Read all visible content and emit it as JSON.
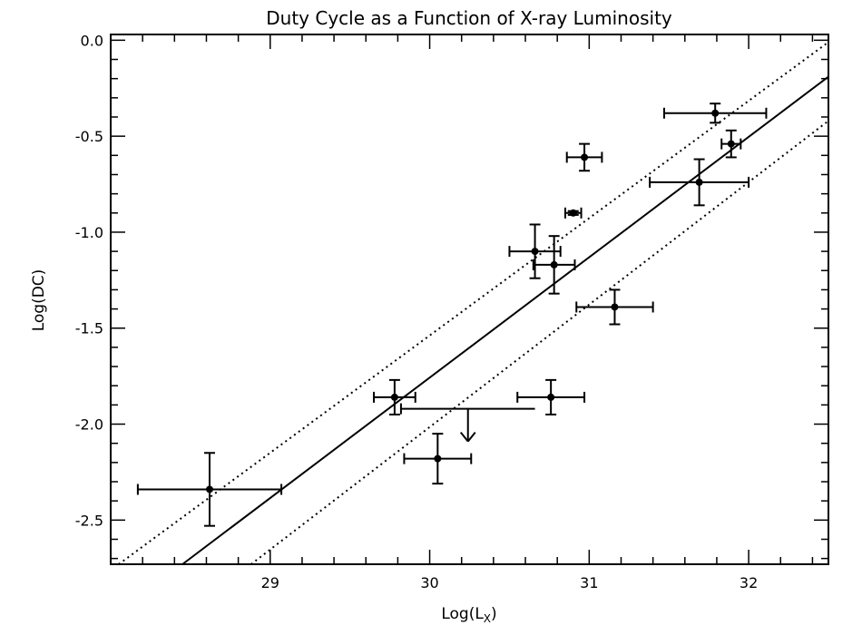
{
  "chart_data": {
    "type": "scatter",
    "title": "Duty Cycle as a Function of X-ray Luminosity",
    "xlabel": {
      "base": "Log(L",
      "sub": "X",
      "close": ")"
    },
    "ylabel": "Log(DC)",
    "xlim": [
      28.0,
      32.5
    ],
    "ylim": [
      -2.73,
      0.03
    ],
    "xticks": [
      29,
      30,
      31,
      32
    ],
    "xtick_labels": [
      "29",
      "30",
      "31",
      "32"
    ],
    "yticks": [
      0.0,
      -0.5,
      -1.0,
      -1.5,
      -2.0,
      -2.5
    ],
    "ytick_labels": [
      "0.0",
      "-0.5",
      "-1.0",
      "-1.5",
      "-2.0",
      "-2.5"
    ],
    "grid": false,
    "points": [
      {
        "x": 28.62,
        "y": -2.34,
        "xerr": 0.45,
        "yerr": 0.19
      },
      {
        "x": 29.78,
        "y": -1.86,
        "xerr": 0.13,
        "yerr": 0.09
      },
      {
        "x": 30.05,
        "y": -2.18,
        "xerr": 0.21,
        "yerr": 0.13
      },
      {
        "x": 30.76,
        "y": -1.86,
        "xerr": 0.21,
        "yerr": 0.09
      },
      {
        "x": 30.66,
        "y": -1.1,
        "xerr": 0.16,
        "yerr": 0.14
      },
      {
        "x": 30.78,
        "y": -1.17,
        "xerr": 0.13,
        "yerr": 0.15
      },
      {
        "x": 30.9,
        "y": -0.9,
        "xerr": 0.05,
        "yerr": 0.01
      },
      {
        "x": 30.97,
        "y": -0.61,
        "xerr": 0.11,
        "yerr": 0.07
      },
      {
        "x": 31.16,
        "y": -1.39,
        "xerr": 0.24,
        "yerr": 0.09
      },
      {
        "x": 31.69,
        "y": -0.74,
        "xerr": 0.31,
        "yerr": 0.12
      },
      {
        "x": 31.79,
        "y": -0.38,
        "xerr": 0.32,
        "yerr": 0.05
      },
      {
        "x": 31.89,
        "y": -0.54,
        "xerr": 0.06,
        "yerr": 0.07
      }
    ],
    "upper_limits": [
      {
        "x": 30.24,
        "y": -1.92,
        "xmin": 29.82,
        "xmax": 30.66,
        "y_arrow_tip": -2.09
      }
    ],
    "fit_line": {
      "points": [
        [
          28.45,
          -2.73
        ],
        [
          32.5,
          -0.19
        ]
      ],
      "style": "solid"
    },
    "confidence_band": [
      {
        "points": [
          [
            28.05,
            -2.73
          ],
          [
            32.5,
            -0.01
          ]
        ],
        "style": "dotted"
      },
      {
        "points": [
          [
            28.88,
            -2.73
          ],
          [
            32.5,
            -0.42
          ]
        ],
        "style": "dotted"
      }
    ]
  }
}
